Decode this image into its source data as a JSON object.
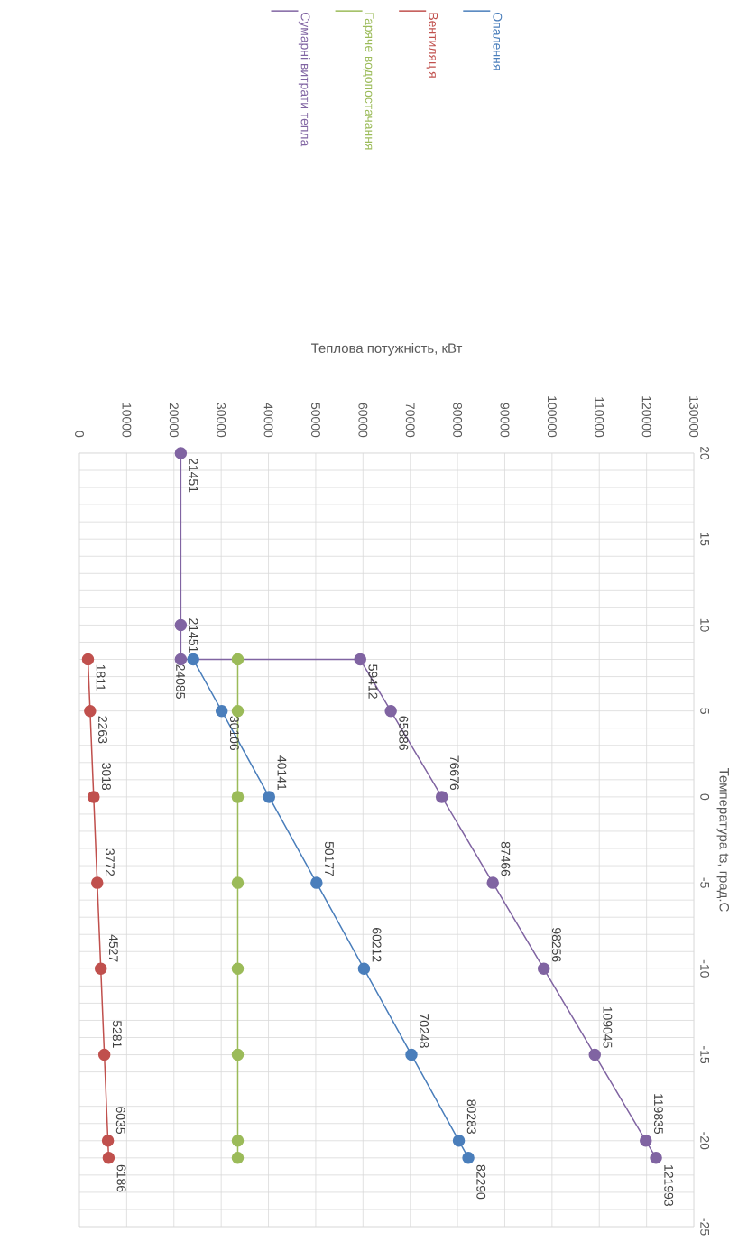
{
  "chart_data": {
    "type": "line",
    "xlabel": "Теплова потужність, кВт",
    "ylabel": "Температура tз, град.С",
    "xlim": [
      0,
      130000
    ],
    "xticks": [
      0,
      10000,
      20000,
      30000,
      40000,
      50000,
      60000,
      70000,
      80000,
      90000,
      100000,
      110000,
      120000,
      130000
    ],
    "ylim": [
      -25,
      20
    ],
    "yticks": [
      -25,
      -20,
      -15,
      -10,
      -5,
      0,
      5,
      10,
      15,
      20
    ],
    "grid": true,
    "legend": "top",
    "marker": "circle",
    "line_style": "solid",
    "series": [
      {
        "name": "Опалення",
        "color": "#4a7ebb",
        "x": [
          24085,
          30106,
          40141,
          50177,
          60212,
          70248,
          80283,
          82290
        ],
        "values": [
          8,
          5,
          0,
          -5,
          -10,
          -15,
          -20,
          -21
        ]
      },
      {
        "name": "Вентиляція",
        "color": "#c0504d",
        "x": [
          1811,
          2263,
          3018,
          3772,
          4527,
          5281,
          6035,
          6186
        ],
        "values": [
          8,
          5,
          0,
          -5,
          -10,
          -15,
          -20,
          -21
        ]
      },
      {
        "name": "Гаряче водопостачання",
        "color": "#9bbb59",
        "x": [
          33500,
          33500,
          33500,
          33500,
          33500,
          33500,
          33500,
          33500
        ],
        "values": [
          8,
          5,
          0,
          -5,
          -10,
          -15,
          -20,
          -21
        ]
      },
      {
        "name": "Сумарні витрати тепла",
        "color": "#8064a2",
        "x": [
          21451,
          21451,
          21451,
          59412,
          65886,
          76676,
          87466,
          98256,
          109045,
          119835,
          121993
        ],
        "values": [
          20,
          10,
          8,
          8,
          5,
          0,
          -5,
          -10,
          -15,
          -20,
          -21
        ]
      }
    ],
    "annotations": [
      {
        "text": "24085",
        "x": 24085,
        "y": 8
      },
      {
        "text": "30106",
        "x": 30106,
        "y": 5
      },
      {
        "text": "40141",
        "x": 40141,
        "y": 0
      },
      {
        "text": "50177",
        "x": 50177,
        "y": -5
      },
      {
        "text": "60212",
        "x": 60212,
        "y": -10
      },
      {
        "text": "70248",
        "x": 70248,
        "y": -15
      },
      {
        "text": "80283",
        "x": 80283,
        "y": -20
      },
      {
        "text": "82290",
        "x": 82290,
        "y": -21
      },
      {
        "text": "1811",
        "x": 1811,
        "y": 8
      },
      {
        "text": "2263",
        "x": 2263,
        "y": 5
      },
      {
        "text": "3018",
        "x": 3018,
        "y": 0
      },
      {
        "text": "3772",
        "x": 3772,
        "y": -5
      },
      {
        "text": "4527",
        "x": 4527,
        "y": -10
      },
      {
        "text": "5281",
        "x": 5281,
        "y": -15
      },
      {
        "text": "6035",
        "x": 6035,
        "y": -20
      },
      {
        "text": "6186",
        "x": 6186,
        "y": -21
      },
      {
        "text": "21451",
        "x": 21451,
        "y": 20
      },
      {
        "text": "21451",
        "x": 21451,
        "y": 8
      },
      {
        "text": "59412",
        "x": 59412,
        "y": 8
      },
      {
        "text": "65886",
        "x": 65886,
        "y": 5
      },
      {
        "text": "76676",
        "x": 76676,
        "y": 0
      },
      {
        "text": "87466",
        "x": 87466,
        "y": -5
      },
      {
        "text": "98256",
        "x": 98256,
        "y": -10
      },
      {
        "text": "109045",
        "x": 109045,
        "y": -15
      },
      {
        "text": "119835",
        "x": 119835,
        "y": -20
      },
      {
        "text": "121993",
        "x": 121993,
        "y": -21
      }
    ]
  }
}
